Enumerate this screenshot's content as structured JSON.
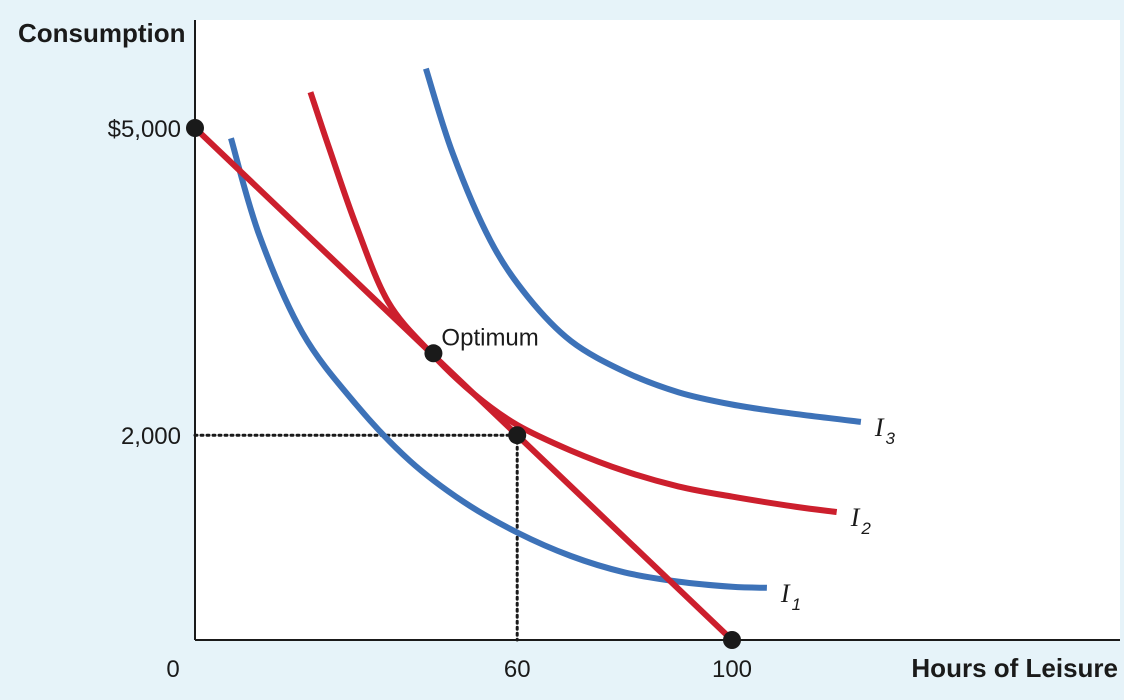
{
  "colors": {
    "background": "#e6f3f9",
    "plot_bg": "#ffffff",
    "budget": "#cc1f2d",
    "blue_curve": "#3d72b8",
    "red_curve": "#cc1f2d",
    "point": "#1a1a1a",
    "axis": "#1a1a1a"
  },
  "chart_data": {
    "type": "line",
    "title": "",
    "xlabel": "Hours of Leisure",
    "ylabel": "Consumption",
    "xlim": [
      0,
      172
    ],
    "ylim": [
      0,
      5000
    ],
    "x_ticks": [
      {
        "value": 0,
        "label": "0"
      },
      {
        "value": 60,
        "label": "60"
      },
      {
        "value": 100,
        "label": "100"
      }
    ],
    "y_ticks": [
      {
        "value": 5000,
        "label": "$5,000"
      },
      {
        "value": 2000,
        "label": "2,000"
      }
    ],
    "grid": false,
    "budget_line": {
      "x": [
        0,
        100
      ],
      "y": [
        5000,
        0
      ]
    },
    "indifference_curves": [
      {
        "label": "I",
        "subscript": "1",
        "color": "blue_curve",
        "x": [
          6.7,
          12,
          20,
          30,
          40,
          50,
          60,
          70,
          80,
          90,
          100,
          106.5
        ],
        "y": [
          4900,
          3950,
          3000,
          2300,
          1750,
          1350,
          1050,
          820,
          660,
          570,
          520,
          510
        ]
      },
      {
        "label": "I",
        "subscript": "2",
        "color": "red_curve",
        "x": [
          21.5,
          25,
          30,
          36,
          44,
          52,
          60,
          70,
          80,
          90,
          100,
          112,
          119.5
        ],
        "y": [
          5350,
          4800,
          4050,
          3300,
          2800,
          2400,
          2100,
          1850,
          1650,
          1500,
          1400,
          1300,
          1250
        ]
      },
      {
        "label": "I",
        "subscript": "3",
        "color": "blue_curve",
        "x": [
          43,
          48,
          55,
          62,
          70,
          80,
          90,
          100,
          110,
          124
        ],
        "y": [
          5580,
          4750,
          3900,
          3350,
          2920,
          2620,
          2420,
          2300,
          2220,
          2130
        ]
      }
    ],
    "points": [
      {
        "x": 0,
        "y": 5000,
        "label": ""
      },
      {
        "x": 44.4,
        "y": 2800,
        "label": "Optimum"
      },
      {
        "x": 60,
        "y": 2000,
        "label": ""
      },
      {
        "x": 100,
        "y": 0,
        "label": ""
      }
    ],
    "reference_lines": {
      "x": 60,
      "y": 2000,
      "style": "dotted"
    }
  }
}
